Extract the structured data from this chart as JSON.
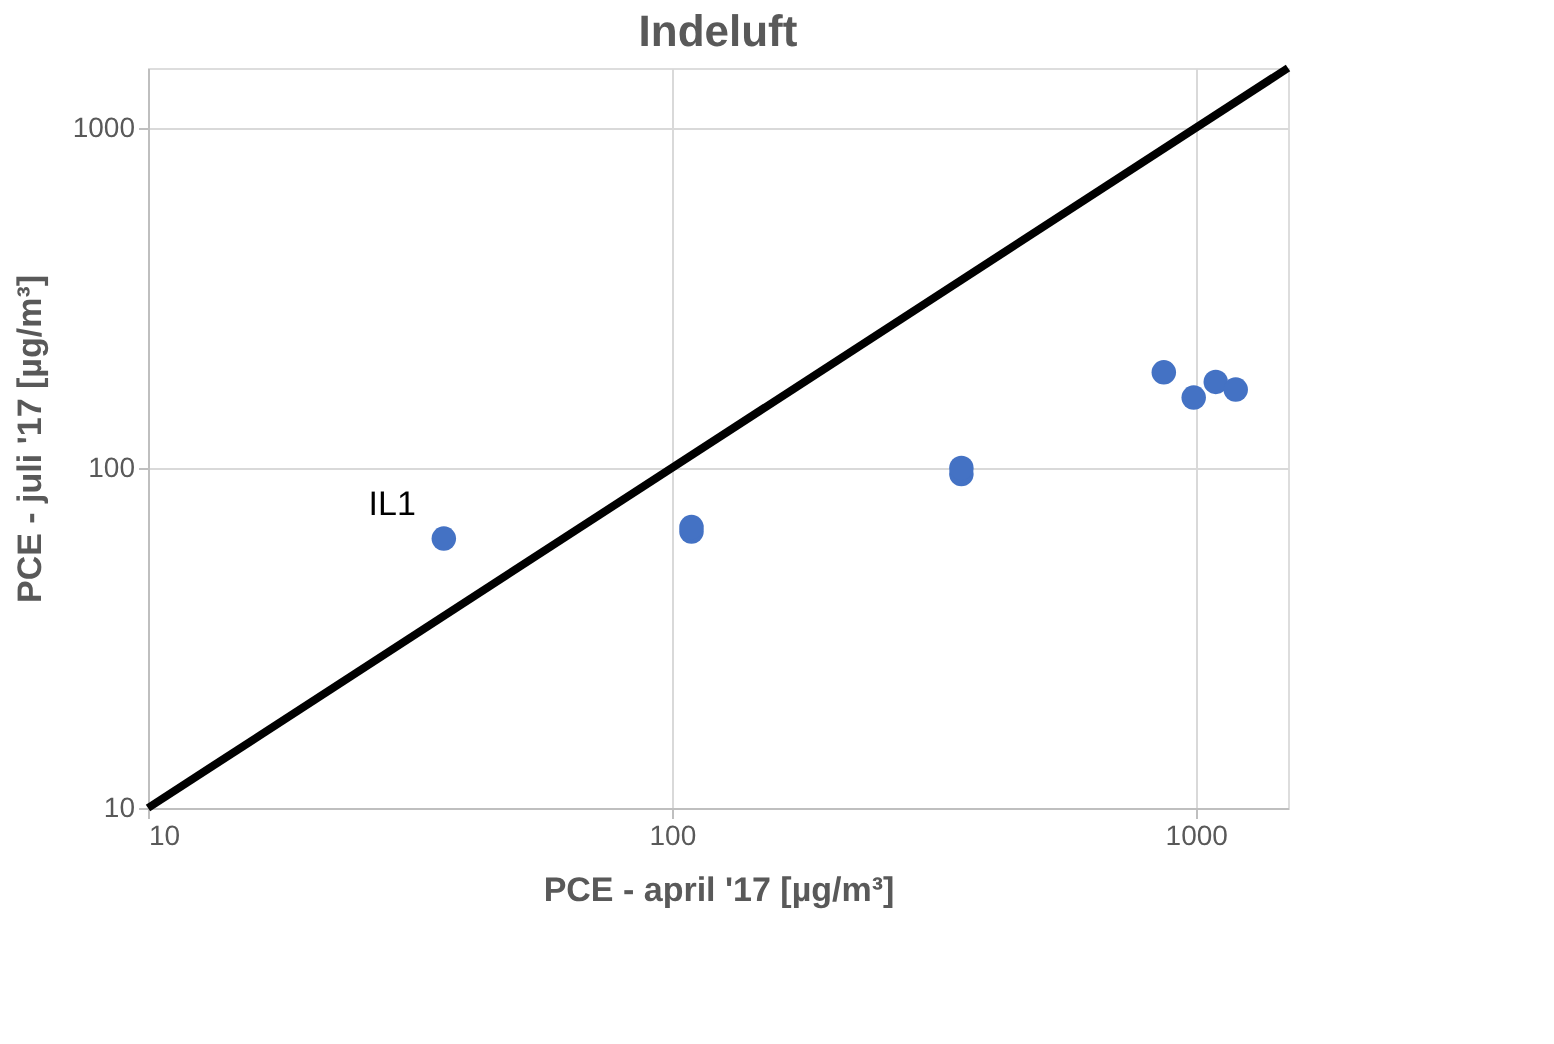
{
  "chart_data": {
    "type": "scatter",
    "title": "Indeluft",
    "xlabel": "PCE - april '17 [µg/m³]",
    "ylabel": "PCE - juli '17 [µg/m³]",
    "log": "xy",
    "xlim": [
      10,
      1500
    ],
    "ylim": [
      10,
      1500
    ],
    "xticks": [
      10,
      100,
      1000
    ],
    "yticks": [
      10,
      100,
      1000
    ],
    "grid": true,
    "series": [
      {
        "marker": "circle",
        "color": "#4472c4",
        "x": [
          36.7,
          109,
          109,
          357,
          357,
          869,
          991,
          1092,
          1192
        ],
        "values": [
          62,
          65,
          67,
          96,
          100,
          191,
          161,
          179,
          170
        ]
      },
      {
        "type": "line",
        "color": "#000000",
        "x": [
          10,
          1500
        ],
        "values": [
          10,
          1500
        ],
        "line_style": "solid"
      }
    ],
    "annotations": [
      {
        "text": "IL1",
        "x": 36.7,
        "y": 62
      }
    ]
  }
}
